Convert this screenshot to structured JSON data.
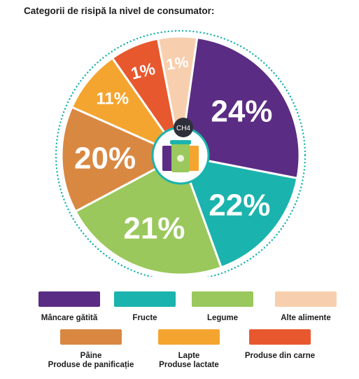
{
  "title": "Categorii de risipă la nivel de consumator:",
  "chart_data": {
    "type": "pie",
    "title": "Categorii de risipă la nivel de consumator:",
    "center_label": "CH4",
    "slices": [
      {
        "label": "Mâncare gătită",
        "value": 24,
        "display": "24%",
        "color": "#5b2c83"
      },
      {
        "label": "Fructe",
        "value": 22,
        "display": "22%",
        "color": "#1bb3ad"
      },
      {
        "label": "Legume",
        "value": 21,
        "display": "21%",
        "color": "#9ac85c"
      },
      {
        "label": "Pâine\nProduse de panificație",
        "value": 20,
        "display": "20%",
        "color": "#d98842"
      },
      {
        "label": "Lapte\nProduse lactate",
        "value": 11,
        "display": "11%",
        "color": "#f4a530"
      },
      {
        "label": "Produse din carne",
        "value": 1,
        "display": "1%",
        "color": "#e8582e"
      },
      {
        "label": "Alte alimente",
        "value": 1,
        "display": "1%",
        "color": "#f7cfae"
      }
    ]
  }
}
